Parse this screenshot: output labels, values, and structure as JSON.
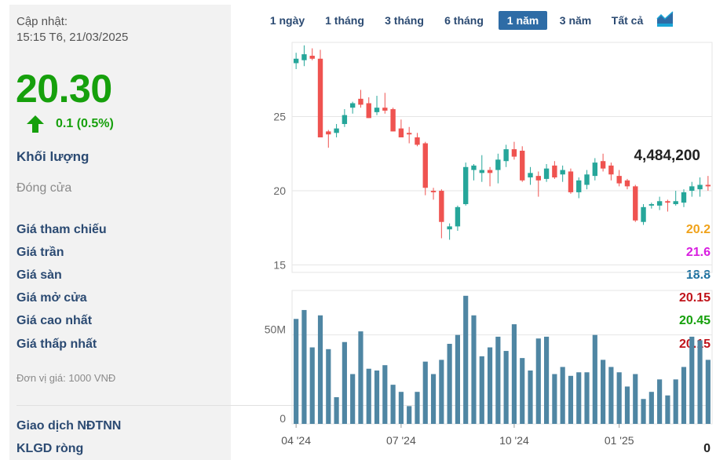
{
  "panel": {
    "updated_label": "Cập nhật:",
    "updated_time": "15:15 T6, 21/03/2025",
    "price": "20.30",
    "change": "0.1 (0.5%)",
    "volume_label": "Khối lượng",
    "volume_value": "4,484,200",
    "close_label": "Đóng cửa",
    "rows": [
      {
        "label": "Giá tham chiếu",
        "value": "20.2",
        "color": "#f0a21a"
      },
      {
        "label": "Giá trần",
        "value": "21.6",
        "color": "#d81ee0"
      },
      {
        "label": "Giá sàn",
        "value": "18.8",
        "color": "#1b6f9e"
      },
      {
        "label": "Giá mở cửa",
        "value": "20.15",
        "color": "#c0141b"
      },
      {
        "label": "Giá cao nhất",
        "value": "20.45",
        "color": "#16a00c"
      },
      {
        "label": "Giá thấp nhất",
        "value": "20.15",
        "color": "#c0141b"
      }
    ],
    "unit": "Đơn vị giá: 1000 VNĐ",
    "foreign_label": "Giao dịch NĐTNN",
    "net_label": "KLGD ròng",
    "net_value": "0"
  },
  "tabs": [
    "1 ngày",
    "1 tháng",
    "3 tháng",
    "6 tháng",
    "1 năm",
    "3 năm",
    "Tất cả"
  ],
  "active_tab": "1 năm",
  "icons": {
    "trend": "area-chart-icon",
    "arrow": "arrow-up-icon"
  },
  "colors": {
    "up": "#26a69a",
    "down": "#ef5350",
    "volume": "#4f86a3",
    "grid": "#e6e6e6",
    "price_green": "#16a00c"
  },
  "chart_data": {
    "type": "candlestick",
    "price_axis": {
      "ylim": [
        14.5,
        30
      ],
      "ticks": [
        15,
        20,
        25
      ]
    },
    "volume_axis": {
      "ylim": [
        0,
        75
      ],
      "ticks": [
        0,
        50
      ],
      "tick_labels": [
        "0",
        "50M"
      ]
    },
    "x_labels": [
      {
        "label": "04 '24",
        "index": 0
      },
      {
        "label": "07 '24",
        "index": 13
      },
      {
        "label": "10 '24",
        "index": 27
      },
      {
        "label": "01 '25",
        "index": 40
      }
    ],
    "candles": [
      {
        "o": 28.6,
        "h": 29.3,
        "l": 28.2,
        "c": 28.9
      },
      {
        "o": 28.8,
        "h": 29.8,
        "l": 28.4,
        "c": 29.2
      },
      {
        "o": 29.1,
        "h": 29.6,
        "l": 28.8,
        "c": 28.9
      },
      {
        "o": 28.9,
        "h": 29.5,
        "l": 23.6,
        "c": 23.6
      },
      {
        "o": 24.0,
        "h": 24.1,
        "l": 22.9,
        "c": 23.8
      },
      {
        "o": 23.9,
        "h": 24.5,
        "l": 23.6,
        "c": 24.2
      },
      {
        "o": 24.5,
        "h": 25.5,
        "l": 24.3,
        "c": 25.1
      },
      {
        "o": 25.6,
        "h": 26.0,
        "l": 25.2,
        "c": 25.9
      },
      {
        "o": 26.2,
        "h": 26.8,
        "l": 25.6,
        "c": 25.8
      },
      {
        "o": 25.9,
        "h": 26.3,
        "l": 24.9,
        "c": 24.9
      },
      {
        "o": 25.3,
        "h": 26.4,
        "l": 25.1,
        "c": 25.6
      },
      {
        "o": 25.6,
        "h": 26.6,
        "l": 25.2,
        "c": 25.4
      },
      {
        "o": 25.5,
        "h": 25.6,
        "l": 24.0,
        "c": 24.0
      },
      {
        "o": 24.2,
        "h": 24.8,
        "l": 23.6,
        "c": 23.6
      },
      {
        "o": 23.9,
        "h": 24.3,
        "l": 23.2,
        "c": 23.8
      },
      {
        "o": 23.6,
        "h": 23.9,
        "l": 23.0,
        "c": 23.1
      },
      {
        "o": 23.2,
        "h": 23.3,
        "l": 19.7,
        "c": 20.2
      },
      {
        "o": 20.0,
        "h": 20.2,
        "l": 19.4,
        "c": 19.9
      },
      {
        "o": 20.0,
        "h": 20.1,
        "l": 16.8,
        "c": 17.9
      },
      {
        "o": 17.4,
        "h": 17.8,
        "l": 16.7,
        "c": 17.6
      },
      {
        "o": 17.6,
        "h": 19.0,
        "l": 17.3,
        "c": 18.9
      },
      {
        "o": 19.1,
        "h": 21.9,
        "l": 19.0,
        "c": 21.6
      },
      {
        "o": 21.4,
        "h": 21.8,
        "l": 20.7,
        "c": 21.7
      },
      {
        "o": 21.2,
        "h": 22.4,
        "l": 20.6,
        "c": 21.4
      },
      {
        "o": 21.4,
        "h": 21.6,
        "l": 20.3,
        "c": 21.2
      },
      {
        "o": 21.4,
        "h": 22.5,
        "l": 20.5,
        "c": 22.1
      },
      {
        "o": 22.0,
        "h": 23.1,
        "l": 21.6,
        "c": 22.8
      },
      {
        "o": 22.8,
        "h": 23.3,
        "l": 22.1,
        "c": 22.3
      },
      {
        "o": 22.7,
        "h": 23.0,
        "l": 20.6,
        "c": 20.7
      },
      {
        "o": 20.9,
        "h": 21.6,
        "l": 20.4,
        "c": 21.2
      },
      {
        "o": 21.0,
        "h": 21.3,
        "l": 19.6,
        "c": 20.7
      },
      {
        "o": 20.8,
        "h": 21.8,
        "l": 20.6,
        "c": 21.5
      },
      {
        "o": 21.7,
        "h": 22.0,
        "l": 20.8,
        "c": 20.9
      },
      {
        "o": 21.1,
        "h": 21.7,
        "l": 20.6,
        "c": 21.4
      },
      {
        "o": 21.3,
        "h": 21.5,
        "l": 19.8,
        "c": 19.9
      },
      {
        "o": 19.9,
        "h": 20.9,
        "l": 19.5,
        "c": 20.7
      },
      {
        "o": 20.4,
        "h": 21.4,
        "l": 20.1,
        "c": 21.1
      },
      {
        "o": 21.0,
        "h": 22.2,
        "l": 20.7,
        "c": 21.9
      },
      {
        "o": 22.0,
        "h": 22.5,
        "l": 21.3,
        "c": 21.5
      },
      {
        "o": 21.7,
        "h": 21.9,
        "l": 20.7,
        "c": 21.1
      },
      {
        "o": 21.0,
        "h": 21.4,
        "l": 20.3,
        "c": 20.5
      },
      {
        "o": 20.7,
        "h": 20.8,
        "l": 20.1,
        "c": 20.3
      },
      {
        "o": 20.3,
        "h": 20.4,
        "l": 17.9,
        "c": 18.0
      },
      {
        "o": 17.9,
        "h": 19.1,
        "l": 17.7,
        "c": 18.9
      },
      {
        "o": 19.0,
        "h": 19.2,
        "l": 18.8,
        "c": 19.1
      },
      {
        "o": 19.0,
        "h": 19.6,
        "l": 18.7,
        "c": 19.3
      },
      {
        "o": 19.3,
        "h": 19.4,
        "l": 18.6,
        "c": 19.2
      },
      {
        "o": 19.1,
        "h": 20.0,
        "l": 19.0,
        "c": 19.3
      },
      {
        "o": 19.2,
        "h": 20.1,
        "l": 18.9,
        "c": 19.9
      },
      {
        "o": 20.0,
        "h": 20.6,
        "l": 19.6,
        "c": 20.3
      },
      {
        "o": 20.1,
        "h": 20.9,
        "l": 19.6,
        "c": 20.4
      },
      {
        "o": 20.4,
        "h": 21.0,
        "l": 20.0,
        "c": 20.3
      }
    ],
    "volumes": [
      59,
      64,
      43,
      61,
      42,
      15,
      46,
      28,
      52,
      31,
      30,
      33,
      22,
      18,
      10,
      18,
      35,
      28,
      36,
      45,
      50,
      72,
      61,
      38,
      43,
      49,
      41,
      56,
      37,
      30,
      48,
      49,
      28,
      32,
      27,
      29,
      29,
      50,
      36,
      32,
      29,
      21,
      28,
      14,
      18,
      25,
      16,
      25,
      32,
      49,
      47,
      36
    ]
  }
}
